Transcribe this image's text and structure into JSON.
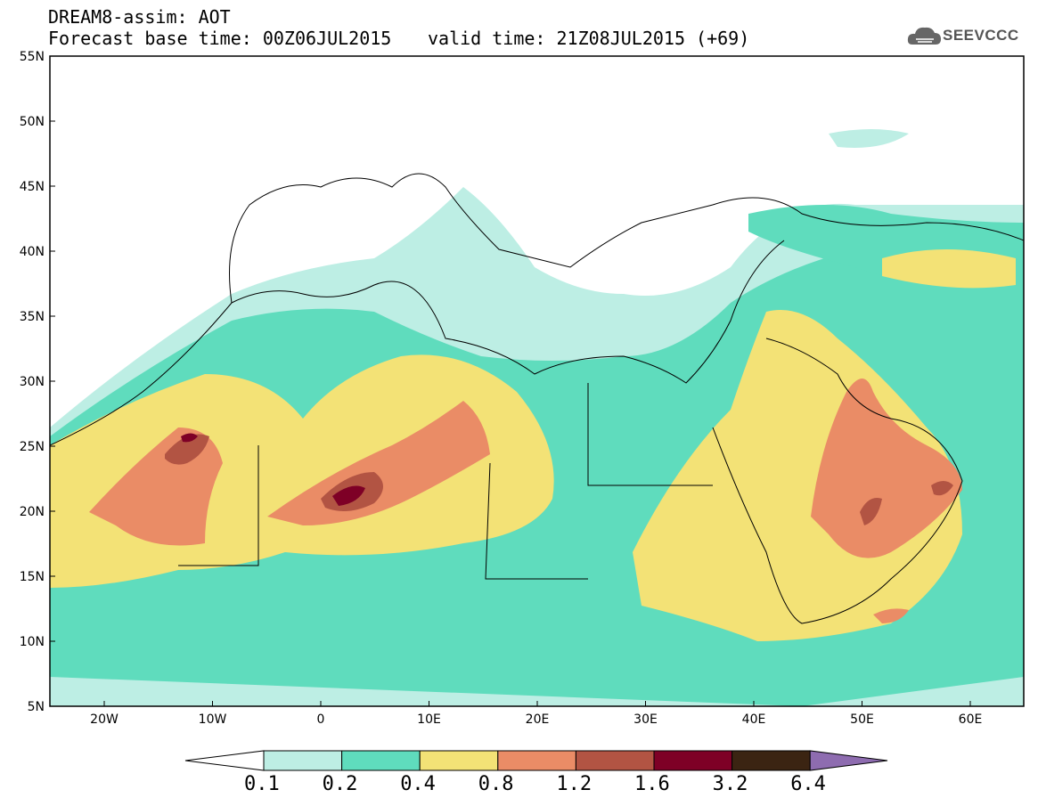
{
  "header": {
    "line1": "DREAM8-assim: AOT",
    "line2": "Forecast base time: 00Z06JUL2015",
    "valid": "valid time: 21Z08JUL2015 (+69)"
  },
  "logo": {
    "text": "SEEVCCC",
    "icon": "cloud-icon"
  },
  "axes": {
    "lat_labels": [
      "55N",
      "50N",
      "45N",
      "40N",
      "35N",
      "30N",
      "25N",
      "20N",
      "15N",
      "10N",
      "5N"
    ],
    "lon_labels": [
      "20W",
      "10W",
      "0",
      "10E",
      "20E",
      "30E",
      "40E",
      "50E",
      "60E"
    ]
  },
  "colorbar": {
    "labels": [
      "0.1",
      "0.2",
      "0.4",
      "0.8",
      "1.2",
      "1.6",
      "3.2",
      "6.4"
    ],
    "colors": [
      "#ffffff",
      "#bdeee4",
      "#5fdcbd",
      "#f3e276",
      "#ea8c66",
      "#b25443",
      "#7e0026",
      "#3b2412",
      "#8e6cb0"
    ]
  },
  "map": {
    "region": "North Africa, Mediterranean, Middle East",
    "variable": "Aerosol Optical Thickness",
    "colors": {
      "c01": "#bdeee4",
      "c02": "#5fdcbd",
      "c04": "#f3e276",
      "c08": "#ea8c66",
      "c12": "#b25443",
      "c16": "#7e0026"
    }
  }
}
